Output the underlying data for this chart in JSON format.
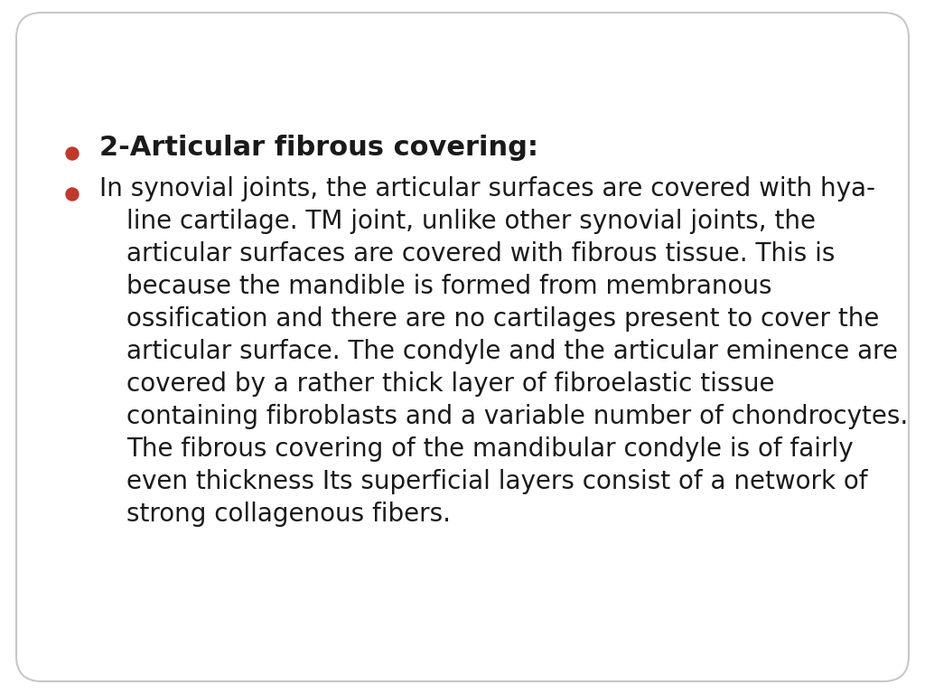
{
  "background_color": "#ffffff",
  "border_color": "#c8c8c8",
  "bullet_color": "#c0392b",
  "text_color": "#1a1a1a",
  "title_bullet": "2-Articular fibrous covering:",
  "title_fontsize": 22,
  "body_fontsize": 20,
  "body_lines": [
    "In synovial joints, the articular surfaces are covered with hya-",
    "line cartilage. TM joint, unlike other synovial joints, the",
    "articular surfaces are covered with fibrous tissue. This is",
    "because the mandible is formed from membranous",
    "ossification and there are no cartilages present to cover the",
    "articular surface. The condyle and the articular eminence are",
    "covered by a rather thick layer of fibroelastic tissue",
    "containing fibroblasts and a variable number of chondrocytes.",
    "The fibrous covering of the mandibular condyle is of fairly",
    "even thickness Its superficial layers consist of a network of",
    "strong collagenous fibers."
  ],
  "figsize": [
    10.24,
    7.68
  ],
  "dpi": 100
}
